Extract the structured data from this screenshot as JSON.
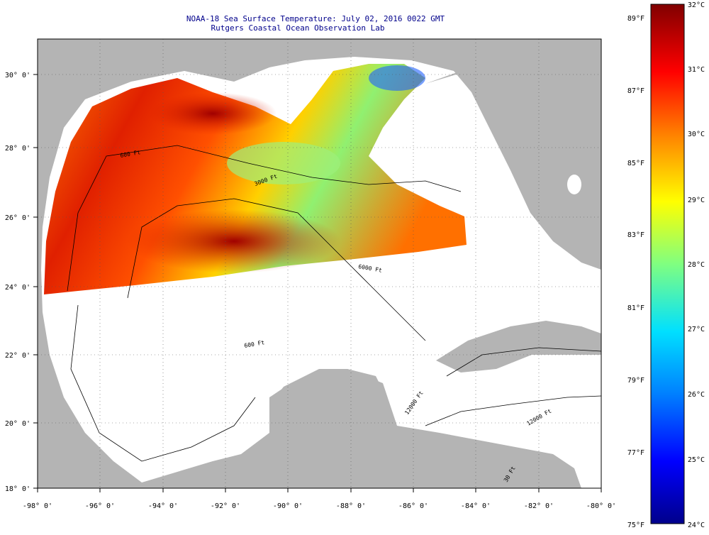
{
  "title": {
    "line1": "NOAA-18 Sea Surface Temperature:  July 02, 2016 0022 GMT",
    "line2": "Rutgers Coastal Ocean Observation Lab"
  },
  "axes": {
    "x_ticks": [
      "-98° 0'",
      "-96° 0'",
      "-94° 0'",
      "-92° 0'",
      "-90° 0'",
      "-88° 0'",
      "-86° 0'",
      "-84° 0'",
      "-82° 0'",
      "-80° 0'"
    ],
    "y_ticks": [
      "30° 0'",
      "28° 0'",
      "26° 0'",
      "24° 0'",
      "22° 0'",
      "20° 0'",
      "18° 0'"
    ],
    "lon_range": [
      -98,
      -80
    ],
    "lat_range": [
      18,
      31
    ]
  },
  "colorbar": {
    "fahrenheit_labels": [
      "89°F",
      "87°F",
      "85°F",
      "83°F",
      "81°F",
      "79°F",
      "77°F",
      "75°F"
    ],
    "celsius_labels": [
      "32°C",
      "31°C",
      "30°C",
      "29°C",
      "28°C",
      "27°C",
      "26°C",
      "25°C",
      "24°C"
    ],
    "range_c": [
      24,
      32
    ]
  },
  "contour_labels": [
    "600 Ft",
    "3000 Ft",
    "6000 Ft",
    "600 Ft",
    "12000 Ft",
    "12000 Ft",
    "30 Ft"
  ],
  "colors": {
    "land": "#b4b4b4",
    "ocean_nodata": "#ffffff",
    "title": "#00008b",
    "contour": "#000000",
    "grid": "#555555"
  }
}
